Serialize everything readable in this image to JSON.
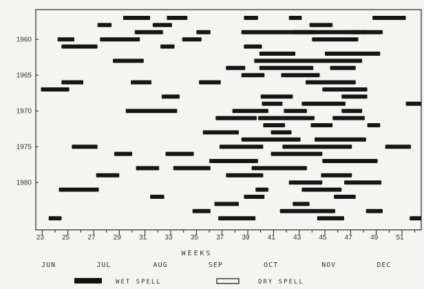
{
  "chart_data": {
    "type": "bar",
    "xlabel": "WEEKS",
    "x_ticks": [
      "23",
      "25",
      "27",
      "29",
      "31",
      "33",
      "35",
      "37",
      "39",
      "41",
      "43",
      "45",
      "47",
      "49",
      "51"
    ],
    "y_ticks": [
      "1960",
      "1965",
      "1970",
      "1975",
      "1980"
    ],
    "xlim": [
      22.5,
      52.5
    ],
    "ylim": [
      1956,
      1985
    ],
    "months": [
      {
        "name": "JUN",
        "week": 23.5
      },
      {
        "name": "JUL",
        "week": 27.8
      },
      {
        "name": "AUG",
        "week": 32.2
      },
      {
        "name": "SEP",
        "week": 36.5
      },
      {
        "name": "OCT",
        "week": 40.8
      },
      {
        "name": "NOV",
        "week": 45.3
      },
      {
        "name": "DEC",
        "week": 49.6
      }
    ],
    "legend": {
      "wet": "WET SPELL",
      "dry": "DRY SPELL"
    },
    "wet_spells": [
      [
        1957,
        32.7,
        34.3
      ],
      [
        1957,
        29.3,
        31.4
      ],
      [
        1957,
        38.7,
        39.8
      ],
      [
        1957,
        42.2,
        43.2
      ],
      [
        1957,
        48.7,
        51.3
      ],
      [
        1958,
        27.3,
        28.4
      ],
      [
        1958,
        43.8,
        45.6
      ],
      [
        1958,
        31.6,
        33.1
      ],
      [
        1959,
        38.5,
        49.5
      ],
      [
        1959,
        35.0,
        36.1
      ],
      [
        1959,
        47.0,
        48.3
      ],
      [
        1959,
        30.2,
        32.4
      ],
      [
        1959,
        42.5,
        44.2
      ],
      [
        1960,
        27.5,
        30.6
      ],
      [
        1960,
        33.9,
        35.4
      ],
      [
        1960,
        44.0,
        47.6
      ],
      [
        1960,
        24.2,
        25.5
      ],
      [
        1961,
        24.5,
        27.3
      ],
      [
        1961,
        32.2,
        33.3
      ],
      [
        1961,
        38.7,
        40.1
      ],
      [
        1962,
        39.9,
        42.7
      ],
      [
        1962,
        45.0,
        49.3
      ],
      [
        1963,
        28.5,
        30.9
      ],
      [
        1963,
        39.5,
        47.9
      ],
      [
        1964,
        37.3,
        38.8
      ],
      [
        1964,
        39.9,
        44.1
      ],
      [
        1964,
        45.4,
        47.4
      ],
      [
        1965,
        38.5,
        40.3
      ],
      [
        1965,
        41.6,
        44.6
      ],
      [
        1966,
        24.5,
        26.2
      ],
      [
        1966,
        29.9,
        31.5
      ],
      [
        1966,
        35.2,
        36.9
      ],
      [
        1966,
        43.5,
        47.4
      ],
      [
        1967,
        44.8,
        48.3
      ],
      [
        1967,
        22.9,
        25.1
      ],
      [
        1968,
        40.0,
        42.5
      ],
      [
        1968,
        46.3,
        48.3
      ],
      [
        1968,
        32.3,
        33.7
      ],
      [
        1969,
        40.1,
        41.7
      ],
      [
        1969,
        43.2,
        46.6
      ],
      [
        1969,
        51.3,
        52.5
      ],
      [
        1970,
        29.5,
        33.5
      ],
      [
        1970,
        37.8,
        40.6
      ],
      [
        1970,
        41.8,
        43.6
      ],
      [
        1970,
        46.3,
        47.9
      ],
      [
        1971,
        36.5,
        39.7
      ],
      [
        1971,
        39.8,
        44.2
      ],
      [
        1971,
        45.6,
        48.1
      ],
      [
        1972,
        40.2,
        41.9
      ],
      [
        1972,
        43.9,
        45.6
      ],
      [
        1972,
        48.3,
        49.3
      ],
      [
        1973,
        35.5,
        38.3
      ],
      [
        1973,
        40.8,
        42.4
      ],
      [
        1974,
        38.5,
        43.1
      ],
      [
        1974,
        44.2,
        48.2
      ],
      [
        1975,
        36.8,
        40.2
      ],
      [
        1975,
        41.7,
        47.1
      ],
      [
        1975,
        49.7,
        51.7
      ],
      [
        1975,
        25.3,
        27.3
      ],
      [
        1976,
        28.6,
        30.0
      ],
      [
        1976,
        32.6,
        34.8
      ],
      [
        1976,
        40.8,
        44.8
      ],
      [
        1977,
        36.0,
        39.8
      ],
      [
        1977,
        44.8,
        49.1
      ],
      [
        1978,
        30.3,
        32.1
      ],
      [
        1978,
        33.2,
        36.1
      ],
      [
        1978,
        39.3,
        43.6
      ],
      [
        1979,
        27.2,
        29.0
      ],
      [
        1979,
        37.3,
        40.2
      ],
      [
        1979,
        44.7,
        47.1
      ],
      [
        1980,
        42.2,
        44.8
      ],
      [
        1980,
        46.5,
        49.4
      ],
      [
        1981,
        24.3,
        27.4
      ],
      [
        1981,
        39.6,
        40.6
      ],
      [
        1981,
        43.2,
        46.3
      ],
      [
        1982,
        31.4,
        32.5
      ],
      [
        1982,
        38.7,
        40.3
      ],
      [
        1982,
        45.7,
        47.4
      ],
      [
        1983,
        36.4,
        38.3
      ],
      [
        1983,
        42.5,
        43.8
      ],
      [
        1984,
        34.7,
        36.1
      ],
      [
        1984,
        41.5,
        45.8
      ],
      [
        1984,
        48.2,
        49.5
      ],
      [
        1985,
        23.5,
        24.5
      ],
      [
        1985,
        36.7,
        39.6
      ],
      [
        1985,
        44.4,
        46.5
      ],
      [
        1985,
        51.6,
        52.5
      ]
    ],
    "dry_spells": []
  }
}
